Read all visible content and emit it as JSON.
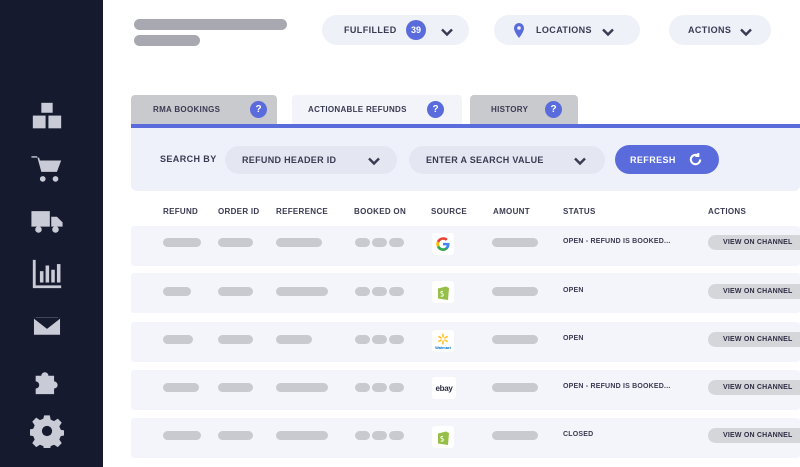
{
  "sidebar": {
    "icons": [
      "boxes-icon",
      "cart-icon",
      "truck-icon",
      "chart-icon",
      "mail-icon",
      "puzzle-icon",
      "gear-icon"
    ]
  },
  "header": {
    "fulfilled_label": "FULFILLED",
    "fulfilled_count": "39",
    "locations_label": "LOCATIONS",
    "actions_label": "ACTIONS"
  },
  "tabs": [
    {
      "label": "RMA BOOKINGS",
      "help": "?"
    },
    {
      "label": "ACTIONABLE REFUNDS",
      "help": "?"
    },
    {
      "label": "HISTORY",
      "help": "?"
    }
  ],
  "search": {
    "label": "SEARCH BY",
    "field": "REFUND HEADER ID",
    "value_placeholder": "ENTER A SEARCH VALUE",
    "refresh_label": "REFRESH"
  },
  "table": {
    "columns": [
      "REFUND",
      "ORDER ID",
      "REFERENCE",
      "BOOKED ON",
      "SOURCE",
      "AMOUNT",
      "STATUS",
      "ACTIONS"
    ],
    "rows": [
      {
        "source": "google-icon",
        "status": "OPEN - REFUND IS BOOKED...",
        "action": "VIEW ON CHANNEL"
      },
      {
        "source": "shopify-icon",
        "status": "OPEN",
        "action": "VIEW ON CHANNEL"
      },
      {
        "source": "walmart-icon",
        "source_text": "Walmart",
        "status": "OPEN",
        "action": "VIEW ON CHANNEL"
      },
      {
        "source": "ebay-icon",
        "source_text": "ebay",
        "status": "OPEN - REFUND IS BOOKED...",
        "action": "VIEW ON CHANNEL"
      },
      {
        "source": "shopify-icon",
        "status": "CLOSED",
        "action": "VIEW ON CHANNEL"
      }
    ]
  },
  "colors": {
    "sidebar": "#161a2e",
    "accent": "#5a6cdc",
    "placeholder": "#c8cad0"
  }
}
